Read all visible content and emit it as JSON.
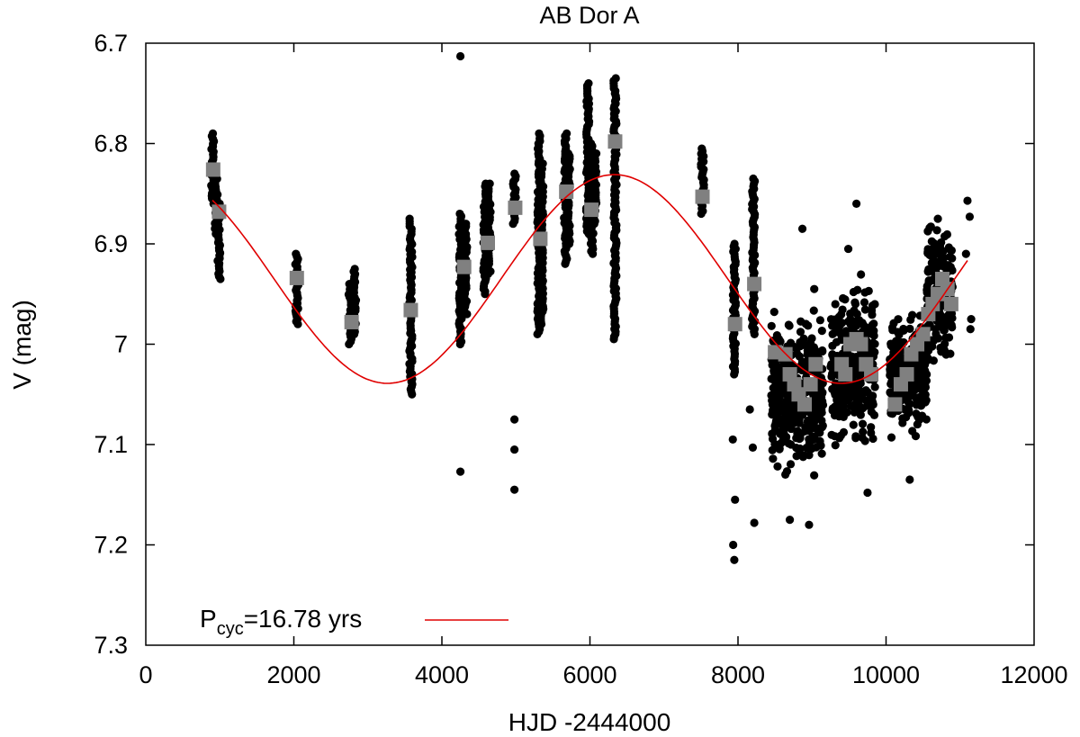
{
  "chart_data": {
    "type": "scatter",
    "title": "AB Dor A",
    "xlabel": "HJD -2444000",
    "ylabel": "V (mag)",
    "xlim": [
      0,
      12000
    ],
    "ylim": [
      6.7,
      7.3
    ],
    "y_inverted": true,
    "grid": false,
    "legend_position": "bottom-left",
    "x_ticks": [
      0,
      2000,
      4000,
      6000,
      8000,
      10000,
      12000
    ],
    "x_tick_labels": [
      "0",
      "2000",
      "4000",
      "6000",
      "8000",
      "10000",
      "12000"
    ],
    "y_ticks": [
      6.7,
      6.8,
      6.9,
      7.0,
      7.1,
      7.2,
      7.3
    ],
    "y_tick_labels": [
      "6.7",
      "6.8",
      "6.9",
      "7",
      "7.1",
      "7.2",
      "7.3"
    ],
    "legend": {
      "label_main": "P",
      "label_sub": "cyc",
      "label_rest": "=16.78 yrs"
    },
    "series": [
      {
        "kind": "observations",
        "color": "#000000",
        "marker": "circle",
        "clusters": [
          {
            "x": 900,
            "y_min": 6.79,
            "y_max": 6.86
          },
          {
            "x": 950,
            "y_min": 6.83,
            "y_max": 6.89
          },
          {
            "x": 990,
            "y_min": 6.86,
            "y_max": 6.935
          },
          {
            "x": 2040,
            "y_min": 6.91,
            "y_max": 6.98
          },
          {
            "x": 2760,
            "y_min": 6.94,
            "y_max": 7.0
          },
          {
            "x": 2820,
            "y_min": 6.925,
            "y_max": 6.99
          },
          {
            "x": 3580,
            "y_min": 6.875,
            "y_max": 7.05
          },
          {
            "x": 4250,
            "y_min": 6.87,
            "y_max": 7.0
          },
          {
            "x": 4320,
            "y_min": 6.88,
            "y_max": 6.97
          },
          {
            "x": 4580,
            "y_min": 6.84,
            "y_max": 6.95
          },
          {
            "x": 4640,
            "y_min": 6.84,
            "y_max": 6.93
          },
          {
            "x": 4980,
            "y_min": 6.83,
            "y_max": 6.88
          },
          {
            "x": 5310,
            "y_min": 6.79,
            "y_max": 6.99
          },
          {
            "x": 5350,
            "y_min": 6.82,
            "y_max": 6.98
          },
          {
            "x": 5670,
            "y_min": 6.79,
            "y_max": 6.92
          },
          {
            "x": 5710,
            "y_min": 6.81,
            "y_max": 6.9
          },
          {
            "x": 5970,
            "y_min": 6.74,
            "y_max": 6.89
          },
          {
            "x": 6030,
            "y_min": 6.8,
            "y_max": 6.91
          },
          {
            "x": 6070,
            "y_min": 6.81,
            "y_max": 6.88
          },
          {
            "x": 6340,
            "y_min": 6.735,
            "y_max": 6.995
          },
          {
            "x": 7520,
            "y_min": 6.805,
            "y_max": 6.87
          },
          {
            "x": 7950,
            "y_min": 6.9,
            "y_max": 7.03
          },
          {
            "x": 8210,
            "y_min": 6.835,
            "y_max": 6.99
          }
        ],
        "scatter_regions": [
          {
            "x_min": 8450,
            "x_max": 9150,
            "y_min": 6.95,
            "y_max": 7.15,
            "count": 360
          },
          {
            "x_min": 9250,
            "x_max": 9850,
            "y_min": 6.92,
            "y_max": 7.12,
            "count": 320
          },
          {
            "x_min": 10050,
            "x_max": 10550,
            "y_min": 6.96,
            "y_max": 7.1,
            "count": 260
          },
          {
            "x_min": 10550,
            "x_max": 10900,
            "y_min": 6.86,
            "y_max": 7.04,
            "count": 200
          }
        ],
        "outliers": [
          {
            "x": 4250,
            "y": 6.713
          },
          {
            "x": 4250,
            "y": 7.127
          },
          {
            "x": 4980,
            "y": 7.075
          },
          {
            "x": 4980,
            "y": 7.105
          },
          {
            "x": 4980,
            "y": 7.145
          },
          {
            "x": 7930,
            "y": 7.095
          },
          {
            "x": 7935,
            "y": 7.2
          },
          {
            "x": 7950,
            "y": 7.215
          },
          {
            "x": 7960,
            "y": 7.155
          },
          {
            "x": 8200,
            "y": 7.103
          },
          {
            "x": 8220,
            "y": 7.178
          },
          {
            "x": 8160,
            "y": 7.065
          },
          {
            "x": 8700,
            "y": 7.175
          },
          {
            "x": 8960,
            "y": 7.18
          },
          {
            "x": 9030,
            "y": 6.945
          },
          {
            "x": 9600,
            "y": 6.86
          },
          {
            "x": 9750,
            "y": 7.148
          },
          {
            "x": 10320,
            "y": 7.135
          },
          {
            "x": 11100,
            "y": 6.857
          },
          {
            "x": 11130,
            "y": 6.873
          },
          {
            "x": 11150,
            "y": 6.975
          },
          {
            "x": 11140,
            "y": 6.985
          },
          {
            "x": 11080,
            "y": 6.91
          },
          {
            "x": 8870,
            "y": 6.885
          },
          {
            "x": 9490,
            "y": 6.905
          },
          {
            "x": 10700,
            "y": 6.875
          }
        ]
      },
      {
        "kind": "seasonal_means",
        "color": "#808080",
        "marker": "square",
        "points": [
          {
            "x": 910,
            "y": 6.826
          },
          {
            "x": 990,
            "y": 6.868
          },
          {
            "x": 2040,
            "y": 6.934
          },
          {
            "x": 2780,
            "y": 6.978
          },
          {
            "x": 3580,
            "y": 6.966
          },
          {
            "x": 4300,
            "y": 6.923
          },
          {
            "x": 4620,
            "y": 6.899
          },
          {
            "x": 4990,
            "y": 6.864
          },
          {
            "x": 5330,
            "y": 6.895
          },
          {
            "x": 5680,
            "y": 6.848
          },
          {
            "x": 6020,
            "y": 6.866
          },
          {
            "x": 6340,
            "y": 6.798
          },
          {
            "x": 7520,
            "y": 6.853
          },
          {
            "x": 7960,
            "y": 6.98
          },
          {
            "x": 8220,
            "y": 6.94
          },
          {
            "x": 8500,
            "y": 7.008
          },
          {
            "x": 8640,
            "y": 7.01
          },
          {
            "x": 8700,
            "y": 7.03
          },
          {
            "x": 8760,
            "y": 7.04
          },
          {
            "x": 8820,
            "y": 7.05
          },
          {
            "x": 8900,
            "y": 7.06
          },
          {
            "x": 8980,
            "y": 7.04
          },
          {
            "x": 9050,
            "y": 7.02
          },
          {
            "x": 9400,
            "y": 7.02
          },
          {
            "x": 9450,
            "y": 7.03
          },
          {
            "x": 9520,
            "y": 7.0
          },
          {
            "x": 9600,
            "y": 6.995
          },
          {
            "x": 9660,
            "y": 7.0
          },
          {
            "x": 9730,
            "y": 7.02
          },
          {
            "x": 9800,
            "y": 7.03
          },
          {
            "x": 10120,
            "y": 7.06
          },
          {
            "x": 10200,
            "y": 7.04
          },
          {
            "x": 10280,
            "y": 7.03
          },
          {
            "x": 10340,
            "y": 7.01
          },
          {
            "x": 10420,
            "y": 7.0
          },
          {
            "x": 10500,
            "y": 6.99
          },
          {
            "x": 10570,
            "y": 6.97
          },
          {
            "x": 10630,
            "y": 6.96
          },
          {
            "x": 10700,
            "y": 6.95
          },
          {
            "x": 10760,
            "y": 6.935
          },
          {
            "x": 10830,
            "y": 6.945
          },
          {
            "x": 10880,
            "y": 6.96
          }
        ]
      },
      {
        "kind": "fit",
        "name": "Pcyc=16.78 yrs",
        "color": "#e00000",
        "line": true,
        "period_days": 6129,
        "mean": 6.935,
        "amplitude": 0.104,
        "max_brightness_x": 6330,
        "x_range": [
          900,
          11120
        ]
      }
    ]
  }
}
